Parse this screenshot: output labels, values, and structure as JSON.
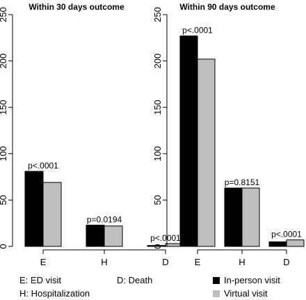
{
  "chart_data": [
    {
      "type": "bar",
      "title": "Within 30 days outcome",
      "categories": [
        "E",
        "H",
        "D"
      ],
      "series": [
        {
          "name": "In-person visit",
          "values": [
            81,
            23,
            1
          ]
        },
        {
          "name": "Virtual visit",
          "values": [
            69,
            22,
            3
          ]
        }
      ],
      "annotations": [
        "p<.0001",
        "p=0.0194",
        "p<.0001"
      ],
      "yticks": [
        0,
        50,
        100,
        150,
        200,
        250
      ],
      "ylim": [
        0,
        250
      ],
      "colors": [
        "#000000",
        "#bebebe"
      ]
    },
    {
      "type": "bar",
      "title": "Within 90 days outcome",
      "categories": [
        "E",
        "H",
        "D"
      ],
      "series": [
        {
          "name": "In-person visit",
          "values": [
            227,
            63,
            5
          ]
        },
        {
          "name": "Virtual visit",
          "values": [
            202,
            63,
            7
          ]
        }
      ],
      "annotations": [
        "p<.0001",
        "p=0.8151",
        "p<.0001"
      ],
      "yticks": [
        0,
        50,
        100,
        150,
        200,
        250
      ],
      "ylim": [
        0,
        250
      ],
      "colors": [
        "#000000",
        "#bebebe"
      ]
    }
  ],
  "legend": {
    "abbreviations": [
      "E: ED visit",
      "H: Hospitalization",
      "D: Death"
    ],
    "series_labels": [
      "In-person visit",
      "Virtual visit"
    ],
    "series_colors": [
      "#000000",
      "#bebebe"
    ]
  }
}
